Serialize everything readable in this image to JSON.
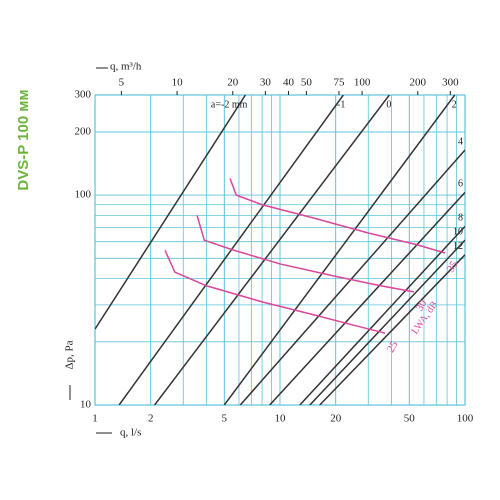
{
  "chart_data": {
    "type": "line",
    "title": "DVS-P 100 мм",
    "x_label": "q, l/s",
    "x2_label": "q, m³/h",
    "y_label": "Δp, Pa",
    "annotation": "LWA, dB",
    "log_x": true,
    "log_y": true,
    "grid": true,
    "xlim": [
      1,
      100
    ],
    "ylim": [
      10,
      300
    ],
    "xticks": [
      1,
      2,
      5,
      10,
      20,
      50,
      100
    ],
    "yticks": [
      10,
      100,
      200,
      300
    ],
    "x2lim": [
      3.6,
      360
    ],
    "x2ticks": [
      5,
      10,
      20,
      30,
      40,
      50,
      75,
      100,
      200,
      300
    ],
    "series": [
      {
        "name": "a=-2 mm",
        "color": "#333333",
        "x": [
          1,
          6.5
        ],
        "values": [
          23,
          300
        ]
      },
      {
        "name": "-1",
        "color": "#333333",
        "x": [
          1.35,
          22
        ],
        "values": [
          10,
          300
        ]
      },
      {
        "name": "0",
        "color": "#333333",
        "x": [
          2.1,
          39
        ],
        "values": [
          10,
          300
        ]
      },
      {
        "name": "2",
        "color": "#333333",
        "x": [
          5,
          88
        ],
        "values": [
          10,
          300
        ]
      },
      {
        "name": "4",
        "color": "#333333",
        "x": [
          6.1,
          100
        ],
        "values": [
          10,
          164
        ]
      },
      {
        "name": "6",
        "color": "#333333",
        "x": [
          8.8,
          100
        ],
        "values": [
          10,
          103
        ]
      },
      {
        "name": "8",
        "color": "#333333",
        "x": [
          12.8,
          100
        ],
        "values": [
          10,
          71
        ]
      },
      {
        "name": "10",
        "color": "#333333",
        "x": [
          14.5,
          100
        ],
        "values": [
          10,
          61
        ]
      },
      {
        "name": "12",
        "color": "#333333",
        "x": [
          16.4,
          100
        ],
        "values": [
          10,
          52
        ]
      },
      {
        "name": "35",
        "color": "#d9479a",
        "x": [
          5.37,
          5.8,
          8,
          15,
          30,
          55,
          78
        ],
        "values": [
          120,
          100,
          90,
          78,
          66,
          58,
          53
        ]
      },
      {
        "name": "30",
        "color": "#d9479a",
        "x": [
          3.56,
          3.9,
          5.5,
          10,
          20,
          35,
          53
        ],
        "values": [
          80,
          61,
          55,
          47,
          41,
          37,
          34.6
        ]
      },
      {
        "name": "25",
        "color": "#d9479a",
        "x": [
          2.39,
          2.7,
          4,
          8,
          15,
          25,
          37
        ],
        "values": [
          54.6,
          43,
          37,
          31,
          27,
          24,
          22
        ]
      }
    ]
  }
}
